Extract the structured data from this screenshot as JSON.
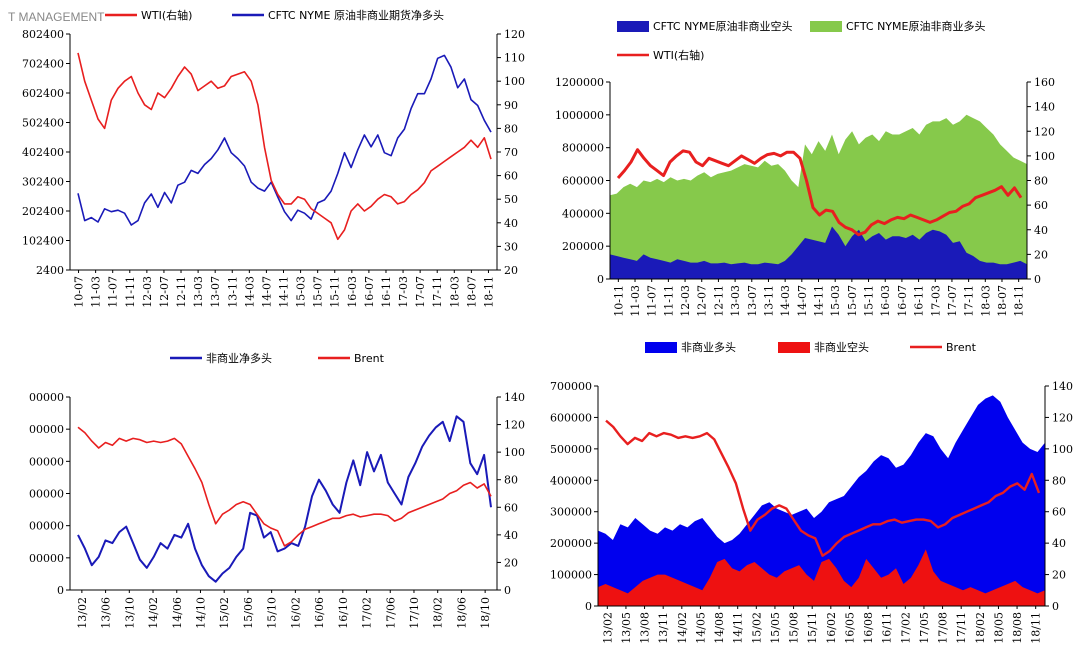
{
  "watermark": "T MANAGEMENT",
  "colors": {
    "red": "#e81f1f",
    "blue": "#1a1ab8",
    "green": "#86c94b",
    "bright_blue": "#0000ee",
    "bright_red": "#ee1111"
  },
  "chart_data": [
    {
      "type": "line",
      "legend": [
        "WTI(右轴)",
        "CFTC NYME 原油非商业期货净多头"
      ],
      "left_ticks": [
        "802400",
        "702400",
        "602400",
        "502400",
        "402400",
        "302400",
        "202400",
        "102400",
        "2400"
      ],
      "right_ticks": [
        "120",
        "110",
        "100",
        "90",
        "80",
        "70",
        "60",
        "50",
        "40",
        "30",
        "20"
      ],
      "x_ticks": [
        "10-07",
        "11-03",
        "11-07",
        "11-11",
        "12-03",
        "12-07",
        "12-11",
        "13-03",
        "13-07",
        "13-11",
        "14-03",
        "14-07",
        "14-11",
        "15-03",
        "15-07",
        "15-11",
        "16-03",
        "16-07",
        "16-11",
        "17-03",
        "17-07",
        "17-11",
        "18-03",
        "18-07",
        "18-11"
      ],
      "ylim_left": [
        2400,
        802400
      ],
      "ylim_right": [
        20,
        120
      ],
      "series": [
        {
          "name": "CFTC NYME 原油非商业期货净多头",
          "axis": "left",
          "values": [
            262400,
            170000,
            180000,
            165000,
            210000,
            200000,
            205000,
            195000,
            155000,
            170000,
            230000,
            260000,
            215000,
            265000,
            230000,
            290000,
            300000,
            340000,
            330000,
            360000,
            380000,
            410000,
            450000,
            400000,
            380000,
            355000,
            300000,
            280000,
            270000,
            300000,
            250000,
            200000,
            170000,
            205000,
            195000,
            175000,
            230000,
            240000,
            270000,
            330000,
            400000,
            350000,
            410000,
            460000,
            420000,
            460000,
            400000,
            390000,
            450000,
            480000,
            550000,
            600000,
            600000,
            650000,
            720000,
            730000,
            690000,
            620000,
            650000,
            580000,
            560000,
            510000,
            470000
          ]
        },
        {
          "name": "WTI(右轴)",
          "axis": "right",
          "values": [
            112,
            100,
            92,
            84,
            80,
            92,
            97,
            100,
            102,
            95,
            90,
            88,
            95,
            93,
            97,
            102,
            106,
            103,
            96,
            98,
            100,
            97,
            98,
            102,
            103,
            104,
            100,
            90,
            72,
            58,
            52,
            48,
            48,
            51,
            50,
            46,
            44,
            42,
            40,
            33,
            37,
            45,
            48,
            45,
            47,
            50,
            52,
            51,
            48,
            49,
            52,
            54,
            57,
            62,
            64,
            66,
            68,
            70,
            72,
            75,
            72,
            76,
            67
          ]
        }
      ]
    },
    {
      "type": "area",
      "legend": [
        "CFTC NYME原油非商业空头",
        "CFTC NYME原油非商业多头",
        "WTI(右轴)"
      ],
      "left_ticks": [
        "1200000",
        "1000000",
        "800000",
        "600000",
        "400000",
        "200000",
        "0"
      ],
      "right_ticks": [
        "160",
        "140",
        "120",
        "100",
        "80",
        "60",
        "40",
        "20",
        "0"
      ],
      "x_ticks": [
        "10-11",
        "11-03",
        "11-07",
        "11-11",
        "12-03",
        "12-07",
        "12-11",
        "13-03",
        "13-07",
        "13-11",
        "14-03",
        "14-07",
        "14-11",
        "15-03",
        "15-07",
        "15-11",
        "16-03",
        "16-07",
        "16-11",
        "17-03",
        "17-07",
        "17-11",
        "18-03",
        "18-07",
        "18-11"
      ],
      "ylim_left": [
        0,
        1200000
      ],
      "ylim_right": [
        0,
        160
      ],
      "series": [
        {
          "name": "CFTC NYME原油非商业多头",
          "axis": "left",
          "values": [
            510000,
            520000,
            560000,
            580000,
            560000,
            600000,
            590000,
            610000,
            590000,
            620000,
            600000,
            610000,
            600000,
            630000,
            650000,
            620000,
            640000,
            650000,
            660000,
            680000,
            700000,
            690000,
            680000,
            720000,
            690000,
            700000,
            660000,
            600000,
            560000,
            820000,
            760000,
            840000,
            780000,
            880000,
            760000,
            850000,
            900000,
            820000,
            860000,
            880000,
            840000,
            900000,
            880000,
            880000,
            900000,
            920000,
            880000,
            940000,
            960000,
            960000,
            980000,
            940000,
            960000,
            1000000,
            980000,
            960000,
            920000,
            880000,
            820000,
            780000,
            740000,
            720000,
            700000
          ]
        },
        {
          "name": "CFTC NYME原油非商业空头",
          "axis": "left",
          "values": [
            150000,
            140000,
            130000,
            120000,
            110000,
            150000,
            130000,
            120000,
            110000,
            100000,
            120000,
            110000,
            100000,
            100000,
            110000,
            95000,
            95000,
            100000,
            90000,
            95000,
            100000,
            90000,
            90000,
            100000,
            95000,
            90000,
            110000,
            150000,
            200000,
            250000,
            240000,
            230000,
            220000,
            320000,
            270000,
            200000,
            260000,
            300000,
            230000,
            260000,
            280000,
            240000,
            260000,
            260000,
            250000,
            270000,
            240000,
            280000,
            300000,
            290000,
            270000,
            220000,
            230000,
            160000,
            140000,
            110000,
            100000,
            100000,
            90000,
            90000,
            100000,
            110000,
            90000
          ]
        },
        {
          "name": "WTI(右轴)",
          "axis": "right",
          "values": [
            82,
            88,
            95,
            105,
            98,
            92,
            88,
            84,
            95,
            100,
            104,
            103,
            95,
            92,
            98,
            96,
            94,
            92,
            96,
            100,
            97,
            94,
            98,
            101,
            102,
            100,
            103,
            103,
            98,
            80,
            58,
            52,
            56,
            55,
            46,
            42,
            40,
            36,
            38,
            44,
            47,
            45,
            48,
            50,
            49,
            52,
            50,
            48,
            46,
            48,
            51,
            54,
            55,
            59,
            61,
            66,
            68,
            70,
            72,
            75,
            68,
            74,
            66
          ]
        }
      ]
    },
    {
      "type": "line",
      "legend": [
        "非商业净多头",
        "Brent"
      ],
      "left_ticks": [
        "00000",
        "00000",
        "00000",
        "00000",
        "00000",
        "00000",
        "0"
      ],
      "right_ticks": [
        "140",
        "120",
        "100",
        "80",
        "60",
        "40",
        "20",
        "0"
      ],
      "x_ticks": [
        "13/02",
        "13/06",
        "13/10",
        "14/02",
        "14/06",
        "14/10",
        "15/02",
        "15/06",
        "15/10",
        "16/02",
        "16/06",
        "16/10",
        "17/02",
        "17/06",
        "17/10",
        "18/02",
        "18/06",
        "18/10"
      ],
      "ylim_left": [
        0,
        700000
      ],
      "ylim_right": [
        0,
        140
      ],
      "series": [
        {
          "name": "非商业净多头",
          "axis": "left",
          "values": [
            200000,
            150000,
            90000,
            120000,
            180000,
            170000,
            210000,
            230000,
            170000,
            110000,
            80000,
            120000,
            170000,
            150000,
            200000,
            190000,
            240000,
            150000,
            90000,
            50000,
            30000,
            60000,
            80000,
            120000,
            150000,
            280000,
            270000,
            190000,
            210000,
            140000,
            150000,
            170000,
            160000,
            230000,
            340000,
            400000,
            360000,
            310000,
            280000,
            390000,
            470000,
            380000,
            500000,
            430000,
            490000,
            390000,
            350000,
            310000,
            410000,
            460000,
            520000,
            560000,
            590000,
            610000,
            540000,
            630000,
            610000,
            460000,
            420000,
            490000,
            300000
          ]
        },
        {
          "name": "Brent",
          "axis": "right",
          "values": [
            118,
            114,
            108,
            103,
            107,
            105,
            110,
            108,
            110,
            109,
            107,
            108,
            107,
            108,
            110,
            106,
            97,
            88,
            78,
            62,
            48,
            55,
            58,
            62,
            64,
            62,
            55,
            48,
            45,
            43,
            32,
            35,
            40,
            44,
            46,
            48,
            50,
            52,
            52,
            54,
            55,
            53,
            54,
            55,
            55,
            54,
            50,
            52,
            56,
            58,
            60,
            62,
            64,
            66,
            70,
            72,
            76,
            78,
            74,
            77,
            68
          ]
        }
      ]
    },
    {
      "type": "area",
      "legend": [
        "非商业多头",
        "非商业空头",
        "Brent"
      ],
      "left_ticks": [
        "700000",
        "600000",
        "500000",
        "400000",
        "300000",
        "200000",
        "100000",
        "0"
      ],
      "right_ticks": [
        "140",
        "120",
        "100",
        "80",
        "60",
        "40",
        "20",
        "0"
      ],
      "x_ticks": [
        "13/02",
        "13/05",
        "13/08",
        "13/11",
        "14/02",
        "14/05",
        "14/08",
        "14/11",
        "15/02",
        "15/05",
        "15/08",
        "15/11",
        "16/02",
        "16/05",
        "16/08",
        "16/11",
        "17/02",
        "17/05",
        "17/08",
        "17/11",
        "18/02",
        "18/05",
        "18/08",
        "18/11"
      ],
      "ylim_left": [
        0,
        700000
      ],
      "ylim_right": [
        0,
        140
      ],
      "series": [
        {
          "name": "非商业多头",
          "axis": "left",
          "values": [
            240000,
            230000,
            210000,
            260000,
            250000,
            280000,
            260000,
            240000,
            230000,
            250000,
            240000,
            260000,
            250000,
            270000,
            280000,
            250000,
            220000,
            200000,
            210000,
            230000,
            260000,
            290000,
            320000,
            330000,
            310000,
            300000,
            290000,
            300000,
            310000,
            280000,
            300000,
            330000,
            340000,
            350000,
            380000,
            410000,
            430000,
            460000,
            480000,
            470000,
            440000,
            450000,
            480000,
            520000,
            550000,
            540000,
            500000,
            470000,
            520000,
            560000,
            600000,
            640000,
            660000,
            670000,
            650000,
            600000,
            560000,
            520000,
            500000,
            490000,
            520000
          ]
        },
        {
          "name": "非商业空头",
          "axis": "left",
          "values": [
            60000,
            70000,
            60000,
            50000,
            40000,
            60000,
            80000,
            90000,
            100000,
            100000,
            90000,
            80000,
            70000,
            60000,
            50000,
            90000,
            140000,
            150000,
            120000,
            110000,
            130000,
            140000,
            120000,
            100000,
            90000,
            110000,
            120000,
            130000,
            100000,
            80000,
            140000,
            150000,
            120000,
            80000,
            60000,
            90000,
            150000,
            120000,
            90000,
            100000,
            120000,
            70000,
            90000,
            130000,
            180000,
            110000,
            80000,
            70000,
            60000,
            50000,
            60000,
            50000,
            40000,
            50000,
            60000,
            70000,
            80000,
            60000,
            50000,
            40000,
            50000
          ]
        },
        {
          "name": "Brent",
          "axis": "right",
          "values": [
            118,
            114,
            108,
            103,
            107,
            105,
            110,
            108,
            110,
            109,
            107,
            108,
            107,
            108,
            110,
            106,
            97,
            88,
            78,
            62,
            48,
            55,
            58,
            62,
            64,
            62,
            55,
            48,
            45,
            43,
            32,
            35,
            40,
            44,
            46,
            48,
            50,
            52,
            52,
            54,
            55,
            53,
            54,
            55,
            55,
            54,
            50,
            52,
            56,
            58,
            60,
            62,
            64,
            66,
            70,
            72,
            76,
            78,
            74,
            84,
            72
          ]
        }
      ]
    }
  ]
}
